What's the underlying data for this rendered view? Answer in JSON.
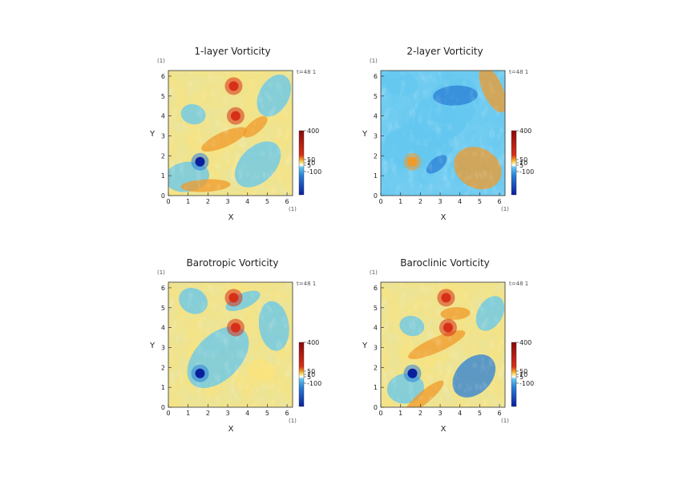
{
  "chart_data": [
    {
      "type": "heatmap",
      "title": "1-layer Vorticity",
      "xlabel": "X",
      "ylabel": "Y",
      "x_unit": "(1)",
      "y_unit": "(1)",
      "time_label": "t=48 1",
      "xlim": [
        0,
        6.28
      ],
      "ylim": [
        0,
        6.28
      ],
      "x_ticks": [
        "0",
        "1",
        "2",
        "3",
        "4",
        "5",
        "6"
      ],
      "y_ticks": [
        "0",
        "1",
        "2",
        "3",
        "4",
        "5",
        "6"
      ],
      "colorbar_labels": [
        "400",
        "50",
        "10",
        "5",
        "-100"
      ],
      "colorbar_values": [
        400,
        50,
        10,
        5,
        -100
      ],
      "features": [
        {
          "kind": "anticyclone",
          "x": 1.6,
          "y": 1.7,
          "value": -100
        },
        {
          "kind": "cyclone",
          "x": 3.4,
          "y": 4.0,
          "value": 400
        },
        {
          "kind": "cyclone",
          "x": 3.3,
          "y": 5.5,
          "value": 300
        }
      ]
    },
    {
      "type": "heatmap",
      "title": "2-layer Vorticity",
      "xlabel": "X",
      "ylabel": "Y",
      "x_unit": "(1)",
      "y_unit": "(1)",
      "time_label": "t=48 1",
      "xlim": [
        0,
        6.28
      ],
      "ylim": [
        0,
        6.28
      ],
      "x_ticks": [
        "0",
        "1",
        "2",
        "3",
        "4",
        "5",
        "6"
      ],
      "y_ticks": [
        "0",
        "1",
        "2",
        "3",
        "4",
        "5",
        "6"
      ],
      "colorbar_labels": [
        "400",
        "50",
        "10",
        "5",
        "-100"
      ],
      "colorbar_values": [
        400,
        50,
        10,
        5,
        -100
      ],
      "features": [
        {
          "kind": "cyclone",
          "x": 1.6,
          "y": 1.7,
          "value": 200
        },
        {
          "kind": "anticyclone",
          "x": 3.4,
          "y": 4.0,
          "value": -60
        }
      ]
    },
    {
      "type": "heatmap",
      "title": "Barotropic Vorticity",
      "xlabel": "X",
      "ylabel": "Y",
      "x_unit": "(1)",
      "y_unit": "(1)",
      "time_label": "t=48 1",
      "xlim": [
        0,
        6.28
      ],
      "ylim": [
        0,
        6.28
      ],
      "x_ticks": [
        "0",
        "1",
        "2",
        "3",
        "4",
        "5",
        "6"
      ],
      "y_ticks": [
        "0",
        "1",
        "2",
        "3",
        "4",
        "5",
        "6"
      ],
      "colorbar_labels": [
        "400",
        "50",
        "10",
        "5",
        "-100"
      ],
      "colorbar_values": [
        400,
        50,
        10,
        5,
        -100
      ],
      "features": [
        {
          "kind": "anticyclone",
          "x": 1.6,
          "y": 1.7,
          "value": -100
        },
        {
          "kind": "cyclone",
          "x": 3.4,
          "y": 4.0,
          "value": 400
        },
        {
          "kind": "cyclone",
          "x": 3.3,
          "y": 5.5,
          "value": 300
        }
      ]
    },
    {
      "type": "heatmap",
      "title": "Baroclinic Vorticity",
      "xlabel": "X",
      "ylabel": "Y",
      "x_unit": "(1)",
      "y_unit": "(1)",
      "time_label": "t=48 1",
      "xlim": [
        0,
        6.28
      ],
      "ylim": [
        0,
        6.28
      ],
      "x_ticks": [
        "0",
        "1",
        "2",
        "3",
        "4",
        "5",
        "6"
      ],
      "y_ticks": [
        "0",
        "1",
        "2",
        "3",
        "4",
        "5",
        "6"
      ],
      "colorbar_labels": [
        "400",
        "50",
        "10",
        "5",
        "-100"
      ],
      "colorbar_values": [
        400,
        50,
        10,
        5,
        -100
      ],
      "features": [
        {
          "kind": "anticyclone",
          "x": 1.6,
          "y": 1.7,
          "value": -100
        },
        {
          "kind": "cyclone",
          "x": 3.4,
          "y": 4.0,
          "value": 400
        },
        {
          "kind": "cyclone",
          "x": 3.3,
          "y": 5.5,
          "value": 300
        }
      ]
    }
  ],
  "colors": {
    "deep_blue": "#0a1f9e",
    "blue": "#2b7fd6",
    "cyan": "#63c7ef",
    "white": "#ffffff",
    "yellow": "#fbe37a",
    "orange": "#f09a2a",
    "red": "#d73018",
    "dark_red": "#8b0a0a"
  }
}
